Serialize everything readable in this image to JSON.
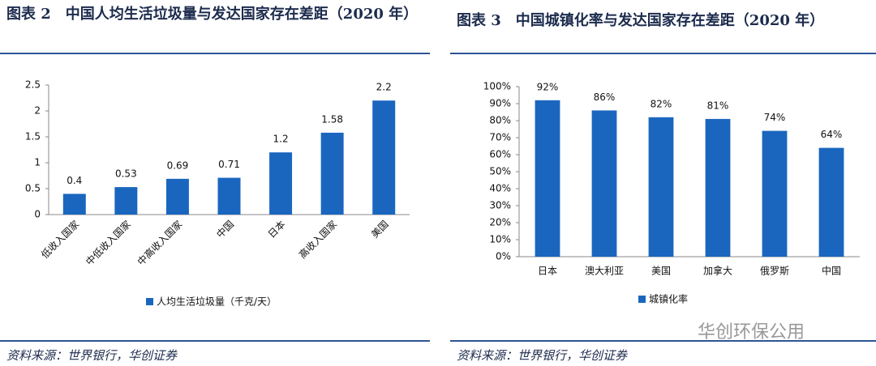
{
  "chart_data": [
    {
      "type": "bar",
      "title": "图表 2　中国人均生活垃圾量与发达国家存在差距（2020 年）",
      "categories": [
        "低收入国家",
        "中低收入国家",
        "中高收入国家",
        "中国",
        "日本",
        "高收入国家",
        "美国"
      ],
      "series": [
        {
          "name": "人均生活垃圾量（千克/天）",
          "color": "#1a66bf",
          "values": [
            0.4,
            0.53,
            0.69,
            0.71,
            1.2,
            1.58,
            2.2
          ]
        }
      ],
      "ylim": [
        0,
        2.5
      ],
      "yticks": [
        0,
        0.5,
        1,
        1.5,
        2,
        2.5
      ],
      "source": "资料来源：世界银行，华创证券"
    },
    {
      "type": "bar",
      "title": "图表 3　中国城镇化率与发达国家存在差距（2020 年）",
      "categories": [
        "日本",
        "澳大利亚",
        "美国",
        "加拿大",
        "俄罗斯",
        "中国"
      ],
      "series": [
        {
          "name": "城镇化率",
          "color": "#1a66bf",
          "values": [
            92,
            86,
            82,
            81,
            74,
            64
          ],
          "value_labels": [
            "92%",
            "86%",
            "82%",
            "81%",
            "74%",
            "64%"
          ]
        }
      ],
      "ylim": [
        0,
        100
      ],
      "yticks": [
        {
          "value": 0,
          "label": "0%"
        },
        {
          "value": 10,
          "label": "10%"
        },
        {
          "value": 20,
          "label": "20%"
        },
        {
          "value": 30,
          "label": "30%"
        },
        {
          "value": 40,
          "label": "40%"
        },
        {
          "value": 50,
          "label": "50%"
        },
        {
          "value": 60,
          "label": "60%"
        },
        {
          "value": 70,
          "label": "70%"
        },
        {
          "value": 80,
          "label": "80%"
        },
        {
          "value": 90,
          "label": "90%"
        },
        {
          "value": 100,
          "label": "100%"
        }
      ],
      "source": "资料来源：世界银行，华创证券"
    }
  ],
  "watermark": "华创环保公用"
}
